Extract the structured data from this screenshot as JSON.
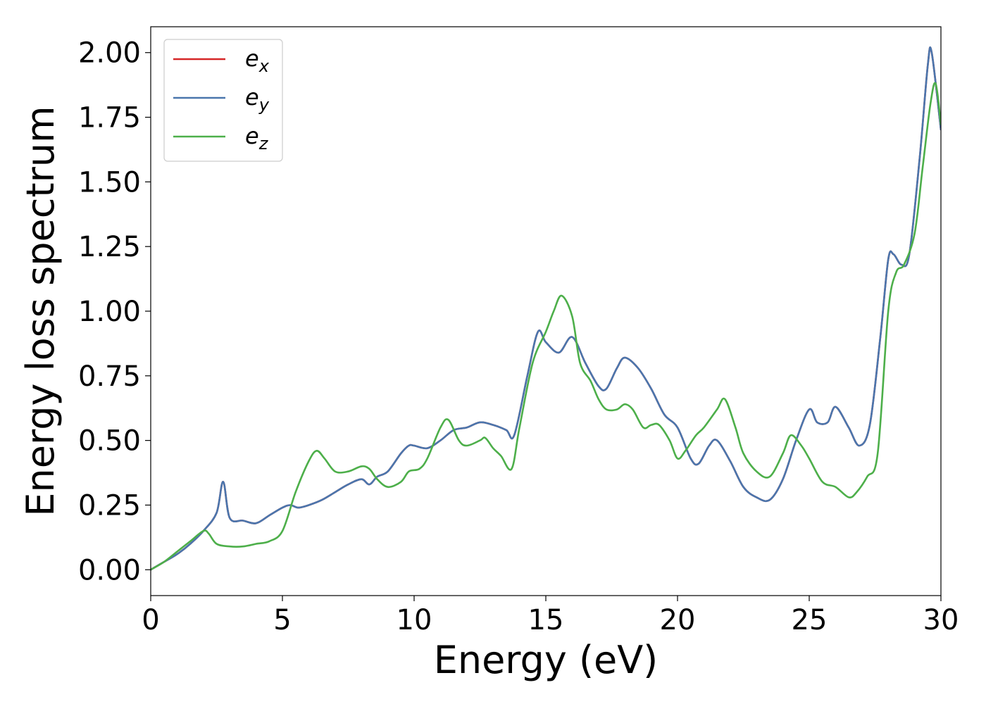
{
  "chart_data": {
    "type": "line",
    "title": "",
    "xlabel": "Energy (eV)",
    "ylabel": "Energy loss spectrum",
    "xlim": [
      0,
      30
    ],
    "ylim": [
      -0.1,
      2.1
    ],
    "xticks": [
      0,
      5,
      10,
      15,
      20,
      25,
      30
    ],
    "xtick_labels": [
      "0",
      "5",
      "10",
      "15",
      "20",
      "25",
      "30"
    ],
    "yticks": [
      0.0,
      0.25,
      0.5,
      0.75,
      1.0,
      1.25,
      1.5,
      1.75,
      2.0
    ],
    "ytick_labels": [
      "0.00",
      "0.25",
      "0.50",
      "0.75",
      "1.00",
      "1.25",
      "1.50",
      "1.75",
      "2.00"
    ],
    "grid": false,
    "legend_position": "top-left",
    "series": [
      {
        "name": "e",
        "subscript": "x",
        "color": "#d62728",
        "x": [
          0,
          0.5,
          1.0,
          1.5,
          2.0,
          2.5,
          2.75,
          3.0,
          3.5,
          4.0,
          4.5,
          5.0,
          5.3,
          5.6,
          6.0,
          6.5,
          7.0,
          7.5,
          8.0,
          8.3,
          8.6,
          9.0,
          9.5,
          9.8,
          10.0,
          10.5,
          11.0,
          11.5,
          12.0,
          12.5,
          13.0,
          13.5,
          13.8,
          14.3,
          14.7,
          15.0,
          15.5,
          16.0,
          16.5,
          17.0,
          17.3,
          17.7,
          18.0,
          18.5,
          19.0,
          19.5,
          20.0,
          20.5,
          20.8,
          21.2,
          21.5,
          22.0,
          22.5,
          23.0,
          23.5,
          24.0,
          24.5,
          25.0,
          25.3,
          25.7,
          26.0,
          26.5,
          26.9,
          27.3,
          27.7,
          28.0,
          28.2,
          28.5,
          28.8,
          29.2,
          29.5,
          29.65,
          30.0
        ],
        "values": [
          0.0,
          0.03,
          0.06,
          0.1,
          0.15,
          0.22,
          0.34,
          0.2,
          0.19,
          0.18,
          0.21,
          0.24,
          0.25,
          0.24,
          0.25,
          0.27,
          0.3,
          0.33,
          0.35,
          0.33,
          0.36,
          0.38,
          0.45,
          0.48,
          0.48,
          0.47,
          0.5,
          0.54,
          0.55,
          0.57,
          0.56,
          0.54,
          0.52,
          0.75,
          0.92,
          0.88,
          0.84,
          0.9,
          0.8,
          0.71,
          0.7,
          0.78,
          0.82,
          0.78,
          0.7,
          0.6,
          0.55,
          0.43,
          0.41,
          0.48,
          0.5,
          0.42,
          0.32,
          0.28,
          0.27,
          0.35,
          0.5,
          0.62,
          0.57,
          0.57,
          0.63,
          0.55,
          0.48,
          0.56,
          0.9,
          1.2,
          1.22,
          1.18,
          1.22,
          1.6,
          1.95,
          2.0,
          1.7
        ]
      },
      {
        "name": "e",
        "subscript": "y",
        "color": "#4a76ad",
        "x": [
          0,
          0.5,
          1.0,
          1.5,
          2.0,
          2.5,
          2.75,
          3.0,
          3.5,
          4.0,
          4.5,
          5.0,
          5.3,
          5.6,
          6.0,
          6.5,
          7.0,
          7.5,
          8.0,
          8.3,
          8.6,
          9.0,
          9.5,
          9.8,
          10.0,
          10.5,
          11.0,
          11.5,
          12.0,
          12.5,
          13.0,
          13.5,
          13.8,
          14.3,
          14.7,
          15.0,
          15.5,
          16.0,
          16.5,
          17.0,
          17.3,
          17.7,
          18.0,
          18.5,
          19.0,
          19.5,
          20.0,
          20.5,
          20.8,
          21.2,
          21.5,
          22.0,
          22.5,
          23.0,
          23.5,
          24.0,
          24.5,
          25.0,
          25.3,
          25.7,
          26.0,
          26.5,
          26.9,
          27.3,
          27.7,
          28.0,
          28.2,
          28.5,
          28.8,
          29.2,
          29.5,
          29.65,
          30.0
        ],
        "values": [
          0.0,
          0.03,
          0.06,
          0.1,
          0.15,
          0.22,
          0.34,
          0.2,
          0.19,
          0.18,
          0.21,
          0.24,
          0.25,
          0.24,
          0.25,
          0.27,
          0.3,
          0.33,
          0.35,
          0.33,
          0.36,
          0.38,
          0.45,
          0.48,
          0.48,
          0.47,
          0.5,
          0.54,
          0.55,
          0.57,
          0.56,
          0.54,
          0.52,
          0.75,
          0.92,
          0.88,
          0.84,
          0.9,
          0.8,
          0.71,
          0.7,
          0.78,
          0.82,
          0.78,
          0.7,
          0.6,
          0.55,
          0.43,
          0.41,
          0.48,
          0.5,
          0.42,
          0.32,
          0.28,
          0.27,
          0.35,
          0.5,
          0.62,
          0.57,
          0.57,
          0.63,
          0.55,
          0.48,
          0.56,
          0.9,
          1.2,
          1.22,
          1.18,
          1.22,
          1.6,
          1.95,
          2.0,
          1.7
        ]
      },
      {
        "name": "e",
        "subscript": "z",
        "color": "#4daf4a",
        "x": [
          0,
          0.5,
          1.0,
          1.5,
          2.0,
          2.2,
          2.5,
          3.0,
          3.5,
          4.0,
          4.5,
          5.0,
          5.5,
          6.0,
          6.3,
          6.6,
          7.0,
          7.5,
          8.0,
          8.3,
          8.6,
          9.0,
          9.5,
          9.8,
          10.2,
          10.5,
          11.0,
          11.3,
          11.7,
          12.0,
          12.5,
          12.7,
          13.0,
          13.3,
          13.7,
          14.0,
          14.5,
          15.0,
          15.3,
          15.6,
          16.0,
          16.3,
          16.7,
          17.0,
          17.3,
          17.7,
          18.0,
          18.3,
          18.7,
          19.0,
          19.3,
          19.7,
          20.0,
          20.3,
          20.7,
          21.0,
          21.5,
          21.8,
          22.2,
          22.5,
          23.0,
          23.5,
          24.0,
          24.3,
          24.7,
          25.0,
          25.5,
          26.0,
          26.5,
          26.8,
          27.2,
          27.6,
          28.0,
          28.3,
          28.6,
          29.0,
          29.3,
          29.6,
          29.8,
          30.0
        ],
        "values": [
          0.0,
          0.03,
          0.07,
          0.11,
          0.15,
          0.14,
          0.1,
          0.09,
          0.09,
          0.1,
          0.11,
          0.15,
          0.3,
          0.42,
          0.46,
          0.43,
          0.38,
          0.38,
          0.4,
          0.39,
          0.35,
          0.32,
          0.34,
          0.38,
          0.39,
          0.43,
          0.55,
          0.58,
          0.5,
          0.48,
          0.5,
          0.51,
          0.47,
          0.44,
          0.39,
          0.55,
          0.8,
          0.92,
          1.0,
          1.06,
          0.98,
          0.8,
          0.73,
          0.66,
          0.62,
          0.62,
          0.64,
          0.62,
          0.55,
          0.56,
          0.56,
          0.5,
          0.43,
          0.46,
          0.52,
          0.55,
          0.62,
          0.66,
          0.55,
          0.45,
          0.38,
          0.36,
          0.45,
          0.52,
          0.48,
          0.43,
          0.34,
          0.32,
          0.28,
          0.3,
          0.36,
          0.45,
          1.0,
          1.15,
          1.18,
          1.3,
          1.55,
          1.8,
          1.88,
          1.72
        ]
      }
    ]
  }
}
